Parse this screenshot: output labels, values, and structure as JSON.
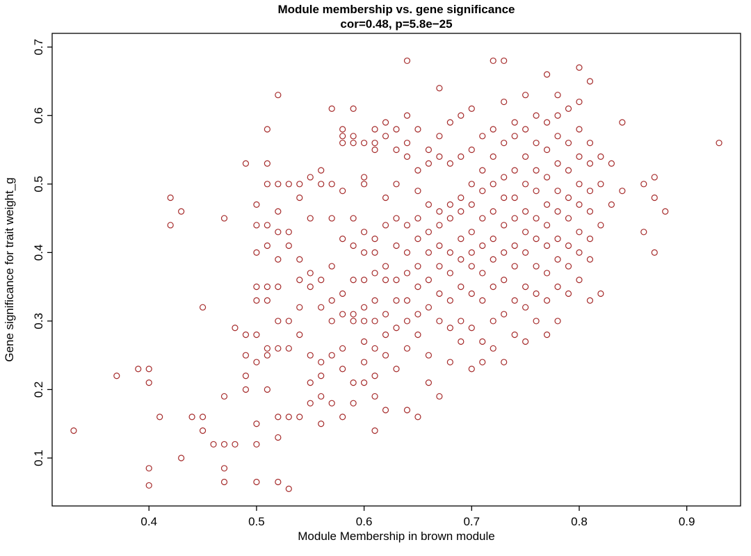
{
  "chart_data": {
    "type": "scatter",
    "title": "Module membership vs. gene significance",
    "subtitle": "cor=0.48, p=5.8e−25",
    "xlabel": "Module Membership in brown module",
    "ylabel": "Gene significance for trait weight_g",
    "xlim": [
      0.31,
      0.95
    ],
    "ylim": [
      0.03,
      0.72
    ],
    "xticks": [
      0.4,
      0.5,
      0.6,
      0.7,
      0.8,
      0.9
    ],
    "yticks": [
      0.1,
      0.2,
      0.3,
      0.4,
      0.5,
      0.6,
      0.7
    ],
    "grid": false,
    "legend": "none",
    "marker": "open-circle",
    "point_color": "#A52A2A",
    "points": [
      [
        0.33,
        0.14
      ],
      [
        0.37,
        0.22
      ],
      [
        0.39,
        0.23
      ],
      [
        0.4,
        0.23
      ],
      [
        0.4,
        0.21
      ],
      [
        0.41,
        0.16
      ],
      [
        0.4,
        0.085
      ],
      [
        0.4,
        0.06
      ],
      [
        0.42,
        0.48
      ],
      [
        0.42,
        0.44
      ],
      [
        0.43,
        0.46
      ],
      [
        0.43,
        0.1
      ],
      [
        0.44,
        0.16
      ],
      [
        0.45,
        0.32
      ],
      [
        0.45,
        0.16
      ],
      [
        0.45,
        0.14
      ],
      [
        0.46,
        0.12
      ],
      [
        0.47,
        0.45
      ],
      [
        0.47,
        0.19
      ],
      [
        0.47,
        0.12
      ],
      [
        0.47,
        0.085
      ],
      [
        0.47,
        0.065
      ],
      [
        0.48,
        0.29
      ],
      [
        0.48,
        0.12
      ],
      [
        0.49,
        0.53
      ],
      [
        0.49,
        0.28
      ],
      [
        0.49,
        0.25
      ],
      [
        0.49,
        0.22
      ],
      [
        0.49,
        0.2
      ],
      [
        0.5,
        0.47
      ],
      [
        0.5,
        0.44
      ],
      [
        0.5,
        0.4
      ],
      [
        0.5,
        0.35
      ],
      [
        0.5,
        0.33
      ],
      [
        0.5,
        0.28
      ],
      [
        0.5,
        0.24
      ],
      [
        0.5,
        0.15
      ],
      [
        0.5,
        0.12
      ],
      [
        0.5,
        0.065
      ],
      [
        0.51,
        0.58
      ],
      [
        0.51,
        0.53
      ],
      [
        0.51,
        0.5
      ],
      [
        0.51,
        0.44
      ],
      [
        0.51,
        0.41
      ],
      [
        0.51,
        0.35
      ],
      [
        0.51,
        0.33
      ],
      [
        0.51,
        0.26
      ],
      [
        0.51,
        0.25
      ],
      [
        0.51,
        0.2
      ],
      [
        0.52,
        0.63
      ],
      [
        0.52,
        0.5
      ],
      [
        0.52,
        0.46
      ],
      [
        0.52,
        0.43
      ],
      [
        0.52,
        0.39
      ],
      [
        0.52,
        0.35
      ],
      [
        0.52,
        0.3
      ],
      [
        0.52,
        0.26
      ],
      [
        0.52,
        0.16
      ],
      [
        0.52,
        0.13
      ],
      [
        0.52,
        0.065
      ],
      [
        0.53,
        0.5
      ],
      [
        0.53,
        0.43
      ],
      [
        0.53,
        0.41
      ],
      [
        0.53,
        0.3
      ],
      [
        0.53,
        0.26
      ],
      [
        0.53,
        0.16
      ],
      [
        0.53,
        0.055
      ],
      [
        0.54,
        0.5
      ],
      [
        0.54,
        0.48
      ],
      [
        0.54,
        0.39
      ],
      [
        0.54,
        0.36
      ],
      [
        0.54,
        0.32
      ],
      [
        0.54,
        0.28
      ],
      [
        0.54,
        0.16
      ],
      [
        0.55,
        0.51
      ],
      [
        0.55,
        0.45
      ],
      [
        0.55,
        0.37
      ],
      [
        0.55,
        0.35
      ],
      [
        0.55,
        0.25
      ],
      [
        0.55,
        0.21
      ],
      [
        0.55,
        0.18
      ],
      [
        0.56,
        0.52
      ],
      [
        0.56,
        0.5
      ],
      [
        0.56,
        0.36
      ],
      [
        0.56,
        0.32
      ],
      [
        0.56,
        0.24
      ],
      [
        0.56,
        0.22
      ],
      [
        0.56,
        0.19
      ],
      [
        0.56,
        0.15
      ],
      [
        0.57,
        0.61
      ],
      [
        0.57,
        0.5
      ],
      [
        0.57,
        0.45
      ],
      [
        0.57,
        0.38
      ],
      [
        0.57,
        0.33
      ],
      [
        0.57,
        0.3
      ],
      [
        0.57,
        0.25
      ],
      [
        0.57,
        0.18
      ],
      [
        0.58,
        0.58
      ],
      [
        0.58,
        0.57
      ],
      [
        0.58,
        0.56
      ],
      [
        0.58,
        0.49
      ],
      [
        0.58,
        0.42
      ],
      [
        0.58,
        0.34
      ],
      [
        0.58,
        0.31
      ],
      [
        0.58,
        0.26
      ],
      [
        0.58,
        0.23
      ],
      [
        0.58,
        0.16
      ],
      [
        0.59,
        0.61
      ],
      [
        0.59,
        0.57
      ],
      [
        0.59,
        0.56
      ],
      [
        0.59,
        0.45
      ],
      [
        0.59,
        0.41
      ],
      [
        0.59,
        0.36
      ],
      [
        0.59,
        0.31
      ],
      [
        0.59,
        0.3
      ],
      [
        0.59,
        0.21
      ],
      [
        0.59,
        0.18
      ],
      [
        0.6,
        0.56
      ],
      [
        0.6,
        0.51
      ],
      [
        0.6,
        0.5
      ],
      [
        0.6,
        0.43
      ],
      [
        0.6,
        0.4
      ],
      [
        0.6,
        0.36
      ],
      [
        0.6,
        0.32
      ],
      [
        0.6,
        0.3
      ],
      [
        0.6,
        0.27
      ],
      [
        0.6,
        0.24
      ],
      [
        0.6,
        0.21
      ],
      [
        0.61,
        0.58
      ],
      [
        0.61,
        0.56
      ],
      [
        0.61,
        0.55
      ],
      [
        0.61,
        0.42
      ],
      [
        0.61,
        0.4
      ],
      [
        0.61,
        0.37
      ],
      [
        0.61,
        0.33
      ],
      [
        0.61,
        0.3
      ],
      [
        0.61,
        0.26
      ],
      [
        0.61,
        0.22
      ],
      [
        0.61,
        0.19
      ],
      [
        0.61,
        0.14
      ],
      [
        0.62,
        0.59
      ],
      [
        0.62,
        0.57
      ],
      [
        0.62,
        0.48
      ],
      [
        0.62,
        0.44
      ],
      [
        0.62,
        0.38
      ],
      [
        0.62,
        0.36
      ],
      [
        0.62,
        0.31
      ],
      [
        0.62,
        0.28
      ],
      [
        0.62,
        0.25
      ],
      [
        0.62,
        0.17
      ],
      [
        0.63,
        0.58
      ],
      [
        0.63,
        0.55
      ],
      [
        0.63,
        0.5
      ],
      [
        0.63,
        0.45
      ],
      [
        0.63,
        0.41
      ],
      [
        0.63,
        0.36
      ],
      [
        0.63,
        0.33
      ],
      [
        0.63,
        0.29
      ],
      [
        0.63,
        0.23
      ],
      [
        0.64,
        0.68
      ],
      [
        0.64,
        0.6
      ],
      [
        0.64,
        0.56
      ],
      [
        0.64,
        0.54
      ],
      [
        0.64,
        0.44
      ],
      [
        0.64,
        0.4
      ],
      [
        0.64,
        0.37
      ],
      [
        0.64,
        0.33
      ],
      [
        0.64,
        0.3
      ],
      [
        0.64,
        0.26
      ],
      [
        0.64,
        0.17
      ],
      [
        0.65,
        0.58
      ],
      [
        0.65,
        0.52
      ],
      [
        0.65,
        0.49
      ],
      [
        0.65,
        0.45
      ],
      [
        0.65,
        0.42
      ],
      [
        0.65,
        0.38
      ],
      [
        0.65,
        0.35
      ],
      [
        0.65,
        0.31
      ],
      [
        0.65,
        0.28
      ],
      [
        0.65,
        0.16
      ],
      [
        0.66,
        0.55
      ],
      [
        0.66,
        0.53
      ],
      [
        0.66,
        0.47
      ],
      [
        0.66,
        0.43
      ],
      [
        0.66,
        0.4
      ],
      [
        0.66,
        0.36
      ],
      [
        0.66,
        0.32
      ],
      [
        0.66,
        0.25
      ],
      [
        0.66,
        0.21
      ],
      [
        0.67,
        0.64
      ],
      [
        0.67,
        0.57
      ],
      [
        0.67,
        0.54
      ],
      [
        0.67,
        0.46
      ],
      [
        0.67,
        0.44
      ],
      [
        0.67,
        0.41
      ],
      [
        0.67,
        0.38
      ],
      [
        0.67,
        0.34
      ],
      [
        0.67,
        0.3
      ],
      [
        0.67,
        0.19
      ],
      [
        0.68,
        0.59
      ],
      [
        0.68,
        0.53
      ],
      [
        0.68,
        0.47
      ],
      [
        0.68,
        0.45
      ],
      [
        0.68,
        0.4
      ],
      [
        0.68,
        0.37
      ],
      [
        0.68,
        0.33
      ],
      [
        0.68,
        0.29
      ],
      [
        0.68,
        0.24
      ],
      [
        0.69,
        0.6
      ],
      [
        0.69,
        0.54
      ],
      [
        0.69,
        0.48
      ],
      [
        0.69,
        0.46
      ],
      [
        0.69,
        0.42
      ],
      [
        0.69,
        0.39
      ],
      [
        0.69,
        0.35
      ],
      [
        0.69,
        0.3
      ],
      [
        0.69,
        0.27
      ],
      [
        0.7,
        0.61
      ],
      [
        0.7,
        0.55
      ],
      [
        0.7,
        0.5
      ],
      [
        0.7,
        0.47
      ],
      [
        0.7,
        0.43
      ],
      [
        0.7,
        0.4
      ],
      [
        0.7,
        0.38
      ],
      [
        0.7,
        0.34
      ],
      [
        0.7,
        0.29
      ],
      [
        0.7,
        0.23
      ],
      [
        0.71,
        0.57
      ],
      [
        0.71,
        0.52
      ],
      [
        0.71,
        0.49
      ],
      [
        0.71,
        0.45
      ],
      [
        0.71,
        0.41
      ],
      [
        0.71,
        0.37
      ],
      [
        0.71,
        0.33
      ],
      [
        0.71,
        0.27
      ],
      [
        0.71,
        0.24
      ],
      [
        0.72,
        0.68
      ],
      [
        0.72,
        0.58
      ],
      [
        0.72,
        0.54
      ],
      [
        0.72,
        0.5
      ],
      [
        0.72,
        0.46
      ],
      [
        0.72,
        0.42
      ],
      [
        0.72,
        0.39
      ],
      [
        0.72,
        0.35
      ],
      [
        0.72,
        0.3
      ],
      [
        0.72,
        0.26
      ],
      [
        0.73,
        0.68
      ],
      [
        0.73,
        0.62
      ],
      [
        0.73,
        0.56
      ],
      [
        0.73,
        0.51
      ],
      [
        0.73,
        0.48
      ],
      [
        0.73,
        0.44
      ],
      [
        0.73,
        0.4
      ],
      [
        0.73,
        0.36
      ],
      [
        0.73,
        0.31
      ],
      [
        0.73,
        0.24
      ],
      [
        0.74,
        0.59
      ],
      [
        0.74,
        0.57
      ],
      [
        0.74,
        0.52
      ],
      [
        0.74,
        0.48
      ],
      [
        0.74,
        0.45
      ],
      [
        0.74,
        0.41
      ],
      [
        0.74,
        0.38
      ],
      [
        0.74,
        0.33
      ],
      [
        0.74,
        0.28
      ],
      [
        0.75,
        0.63
      ],
      [
        0.75,
        0.58
      ],
      [
        0.75,
        0.54
      ],
      [
        0.75,
        0.5
      ],
      [
        0.75,
        0.46
      ],
      [
        0.75,
        0.43
      ],
      [
        0.75,
        0.4
      ],
      [
        0.75,
        0.35
      ],
      [
        0.75,
        0.32
      ],
      [
        0.75,
        0.27
      ],
      [
        0.76,
        0.6
      ],
      [
        0.76,
        0.56
      ],
      [
        0.76,
        0.52
      ],
      [
        0.76,
        0.49
      ],
      [
        0.76,
        0.45
      ],
      [
        0.76,
        0.42
      ],
      [
        0.76,
        0.38
      ],
      [
        0.76,
        0.34
      ],
      [
        0.76,
        0.3
      ],
      [
        0.77,
        0.66
      ],
      [
        0.77,
        0.59
      ],
      [
        0.77,
        0.55
      ],
      [
        0.77,
        0.51
      ],
      [
        0.77,
        0.47
      ],
      [
        0.77,
        0.44
      ],
      [
        0.77,
        0.41
      ],
      [
        0.77,
        0.37
      ],
      [
        0.77,
        0.33
      ],
      [
        0.77,
        0.28
      ],
      [
        0.78,
        0.63
      ],
      [
        0.78,
        0.6
      ],
      [
        0.78,
        0.57
      ],
      [
        0.78,
        0.53
      ],
      [
        0.78,
        0.49
      ],
      [
        0.78,
        0.46
      ],
      [
        0.78,
        0.42
      ],
      [
        0.78,
        0.39
      ],
      [
        0.78,
        0.35
      ],
      [
        0.78,
        0.3
      ],
      [
        0.79,
        0.61
      ],
      [
        0.79,
        0.56
      ],
      [
        0.79,
        0.52
      ],
      [
        0.79,
        0.48
      ],
      [
        0.79,
        0.45
      ],
      [
        0.79,
        0.41
      ],
      [
        0.79,
        0.38
      ],
      [
        0.79,
        0.34
      ],
      [
        0.8,
        0.67
      ],
      [
        0.8,
        0.62
      ],
      [
        0.8,
        0.58
      ],
      [
        0.8,
        0.54
      ],
      [
        0.8,
        0.5
      ],
      [
        0.8,
        0.47
      ],
      [
        0.8,
        0.43
      ],
      [
        0.8,
        0.4
      ],
      [
        0.8,
        0.36
      ],
      [
        0.81,
        0.65
      ],
      [
        0.81,
        0.56
      ],
      [
        0.81,
        0.53
      ],
      [
        0.81,
        0.49
      ],
      [
        0.81,
        0.46
      ],
      [
        0.81,
        0.42
      ],
      [
        0.81,
        0.39
      ],
      [
        0.81,
        0.33
      ],
      [
        0.82,
        0.54
      ],
      [
        0.82,
        0.5
      ],
      [
        0.82,
        0.44
      ],
      [
        0.82,
        0.34
      ],
      [
        0.83,
        0.53
      ],
      [
        0.83,
        0.47
      ],
      [
        0.84,
        0.59
      ],
      [
        0.84,
        0.49
      ],
      [
        0.86,
        0.5
      ],
      [
        0.86,
        0.43
      ],
      [
        0.87,
        0.51
      ],
      [
        0.87,
        0.48
      ],
      [
        0.87,
        0.4
      ],
      [
        0.88,
        0.46
      ],
      [
        0.93,
        0.56
      ]
    ]
  }
}
